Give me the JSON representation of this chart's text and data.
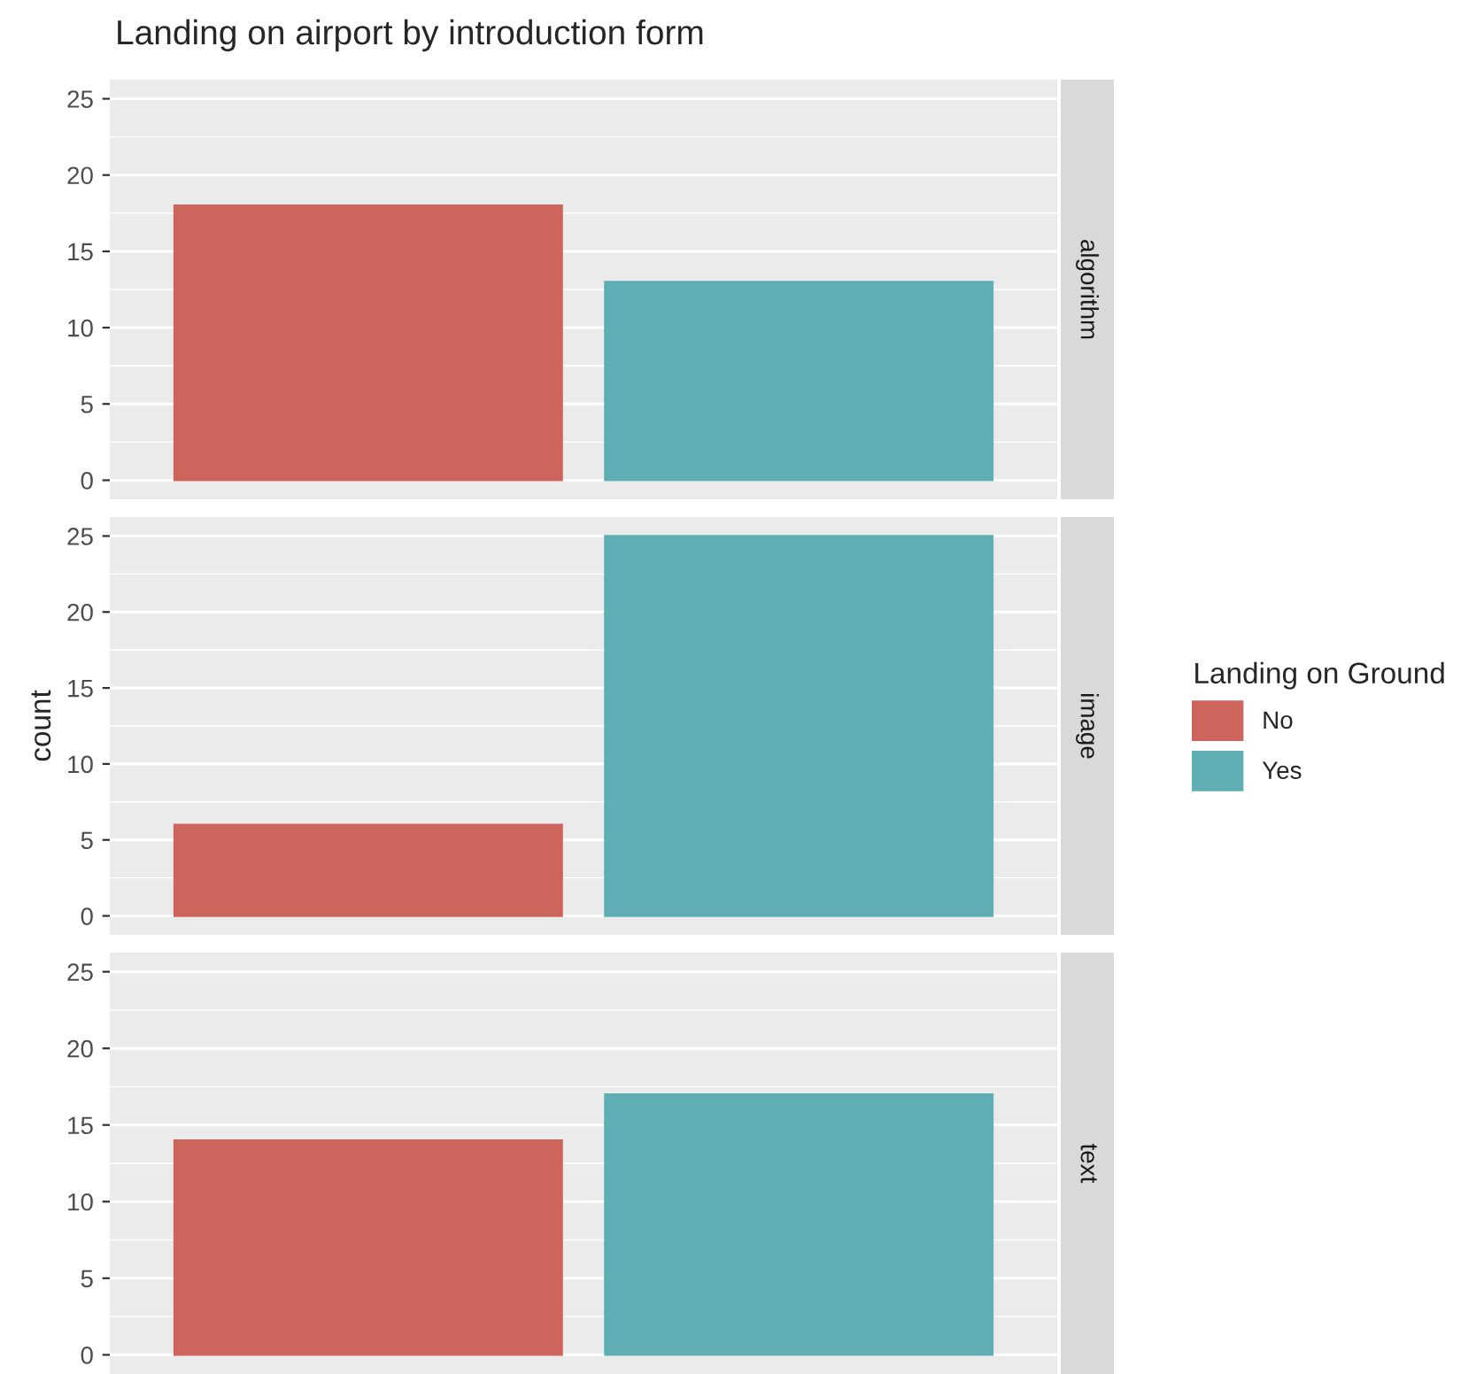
{
  "chart_data": [
    {
      "type": "bar",
      "title": "Landing on airport by introduction form",
      "categories": [
        null,
        null
      ],
      "series": [
        {
          "color": "#cd655c",
          "values": [
            18,
            null
          ]
        },
        {
          "color": "#5eaeb4",
          "values": [
            null,
            13
          ]
        }
      ],
      "annotations": [
        "algorithm"
      ],
      "ylim": [
        -1.25,
        26.25
      ],
      "yticks": [
        0,
        5,
        10,
        15,
        20,
        25
      ],
      "grid": true,
      "tick_labels": "y"
    },
    {
      "type": "bar",
      "categories": [
        null,
        null
      ],
      "ylabel": "count",
      "legend_title": "Landing on Ground",
      "legend": "right",
      "series": [
        {
          "name": "No",
          "color": "#cd655c",
          "values": [
            6,
            null
          ]
        },
        {
          "name": "Yes",
          "color": "#5eaeb4",
          "values": [
            null,
            25
          ]
        }
      ],
      "annotations": [
        "image"
      ],
      "ylim": [
        -1.25,
        26.25
      ],
      "yticks": [
        0,
        5,
        10,
        15,
        20,
        25
      ],
      "grid": true,
      "tick_labels": "y"
    },
    {
      "type": "bar",
      "categories": [
        null,
        null
      ],
      "series": [
        {
          "color": "#cd655c",
          "values": [
            14,
            null
          ]
        },
        {
          "color": "#5eaeb4",
          "values": [
            null,
            17
          ]
        }
      ],
      "annotations": [
        "text"
      ],
      "ylim": [
        -1.25,
        26.25
      ],
      "yticks": [
        0,
        5,
        10,
        15,
        20,
        25
      ],
      "grid": true,
      "tick_labels": "y"
    }
  ]
}
